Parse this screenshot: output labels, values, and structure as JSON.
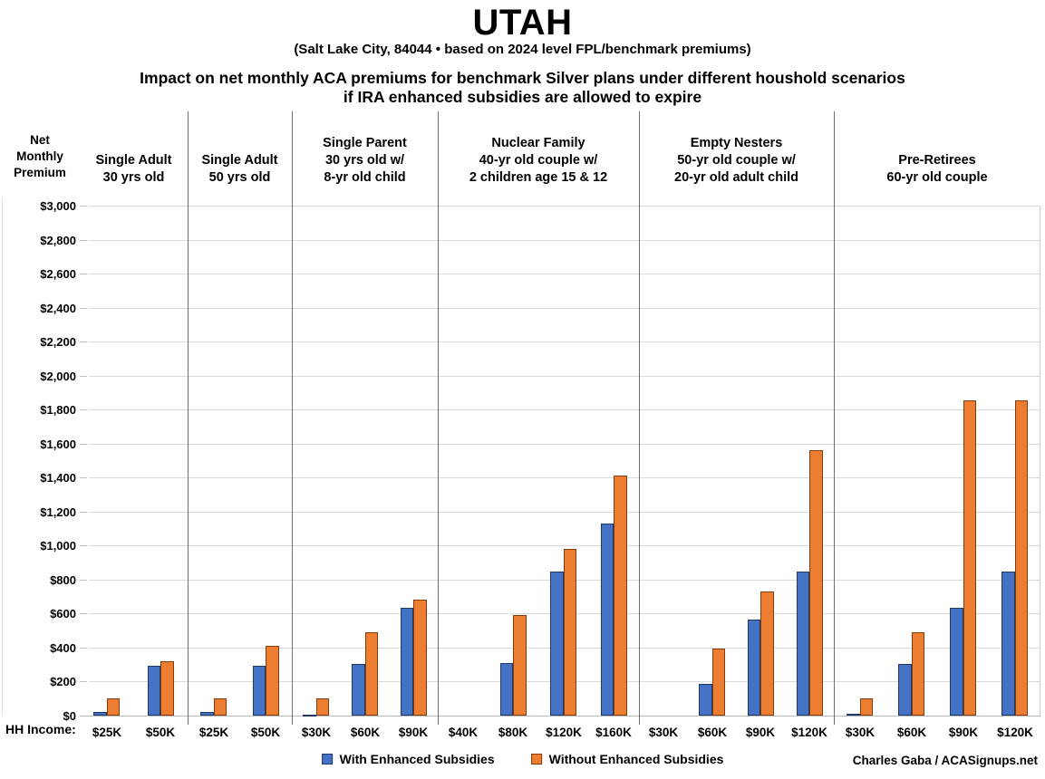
{
  "header": {
    "title": "UTAH",
    "subtitle": "(Salt Lake City, 84044 • based on 2024 level FPL/benchmark premiums)",
    "heading_line1": "Impact on net monthly ACA premiums for benchmark Silver plans under different houshold scenarios",
    "heading_line2": "if IRA enhanced subsidies are allowed to expire"
  },
  "axis": {
    "y_title_lines": [
      "Net",
      "Monthly",
      "Premium"
    ],
    "x_title": "HH Income:",
    "y_tick_labels": [
      "$0",
      "$200",
      "$400",
      "$600",
      "$800",
      "$1,000",
      "$1,200",
      "$1,400",
      "$1,600",
      "$1,800",
      "$2,000",
      "$2,200",
      "$2,400",
      "$2,600",
      "$2,800",
      "$3,000"
    ]
  },
  "legend": {
    "items": [
      {
        "label": "With Enhanced Subsidies",
        "color": "#4472C4",
        "border": "#1F3864"
      },
      {
        "label": "Without Enhanced Subsidies",
        "color": "#ED7D31",
        "border": "#843C0C"
      }
    ]
  },
  "credit": "Charles Gaba / ACASignups.net",
  "chart_data": {
    "type": "bar",
    "title": "Impact on net monthly ACA premiums for benchmark Silver plans under different houshold scenarios if IRA enhanced subsidies are allowed to expire",
    "location": "Salt Lake City, 84044",
    "basis": "2024 level FPL/benchmark premiums",
    "ylabel": "Net Monthly Premium",
    "xlabel": "HH Income",
    "ylim": [
      0,
      3000
    ],
    "y_tick_step": 200,
    "grid": true,
    "legend_position": "bottom",
    "series_names": [
      "With Enhanced Subsidies",
      "Without Enhanced Subsidies"
    ],
    "colors": {
      "with": "#4472C4",
      "without": "#ED7D31"
    },
    "groups": [
      {
        "label_lines": [
          "Single Adult",
          "30 yrs old"
        ],
        "categories": [
          "$25K",
          "$50K"
        ],
        "series": [
          {
            "name": "With Enhanced Subsidies",
            "values": [
              20,
              295
            ]
          },
          {
            "name": "Without Enhanced Subsidies",
            "values": [
              100,
              320
            ]
          }
        ]
      },
      {
        "label_lines": [
          "Single Adult",
          "50 yrs old"
        ],
        "categories": [
          "$25K",
          "$50K"
        ],
        "series": [
          {
            "name": "With Enhanced Subsidies",
            "values": [
              20,
              295
            ]
          },
          {
            "name": "Without Enhanced Subsidies",
            "values": [
              100,
              410
            ]
          }
        ]
      },
      {
        "label_lines": [
          "Single Parent",
          "30 yrs old w/",
          "8-yr old child"
        ],
        "categories": [
          "$30K",
          "$60K",
          "$90K"
        ],
        "series": [
          {
            "name": "With Enhanced Subsidies",
            "values": [
              5,
              305,
              635
            ]
          },
          {
            "name": "Without Enhanced Subsidies",
            "values": [
              100,
              490,
              680
            ]
          }
        ]
      },
      {
        "label_lines": [
          "Nuclear Family",
          "40-yr old couple w/",
          "2 children age 15 & 12"
        ],
        "categories": [
          "$40K",
          "$80K",
          "$120K",
          "$160K"
        ],
        "series": [
          {
            "name": "With Enhanced Subsidies",
            "values": [
              0,
              310,
              845,
              1130
            ]
          },
          {
            "name": "Without Enhanced Subsidies",
            "values": [
              0,
              590,
              980,
              1410
            ]
          }
        ]
      },
      {
        "label_lines": [
          "Empty Nesters",
          "50-yr old couple w/",
          "20-yr old adult child"
        ],
        "categories": [
          "$30K",
          "$60K",
          "$90K",
          "$120K"
        ],
        "series": [
          {
            "name": "With Enhanced Subsidies",
            "values": [
              0,
              185,
              565,
              845
            ]
          },
          {
            "name": "Without Enhanced Subsidies",
            "values": [
              0,
              395,
              730,
              1560
            ]
          }
        ]
      },
      {
        "label_lines": [
          "Pre-Retirees",
          "60-yr old couple"
        ],
        "categories": [
          "$30K",
          "$60K",
          "$90K",
          "$120K"
        ],
        "series": [
          {
            "name": "With Enhanced Subsidies",
            "values": [
              10,
              305,
              635,
              845
            ]
          },
          {
            "name": "Without Enhanced Subsidies",
            "values": [
              100,
              490,
              1855,
              1855
            ]
          }
        ]
      }
    ]
  }
}
